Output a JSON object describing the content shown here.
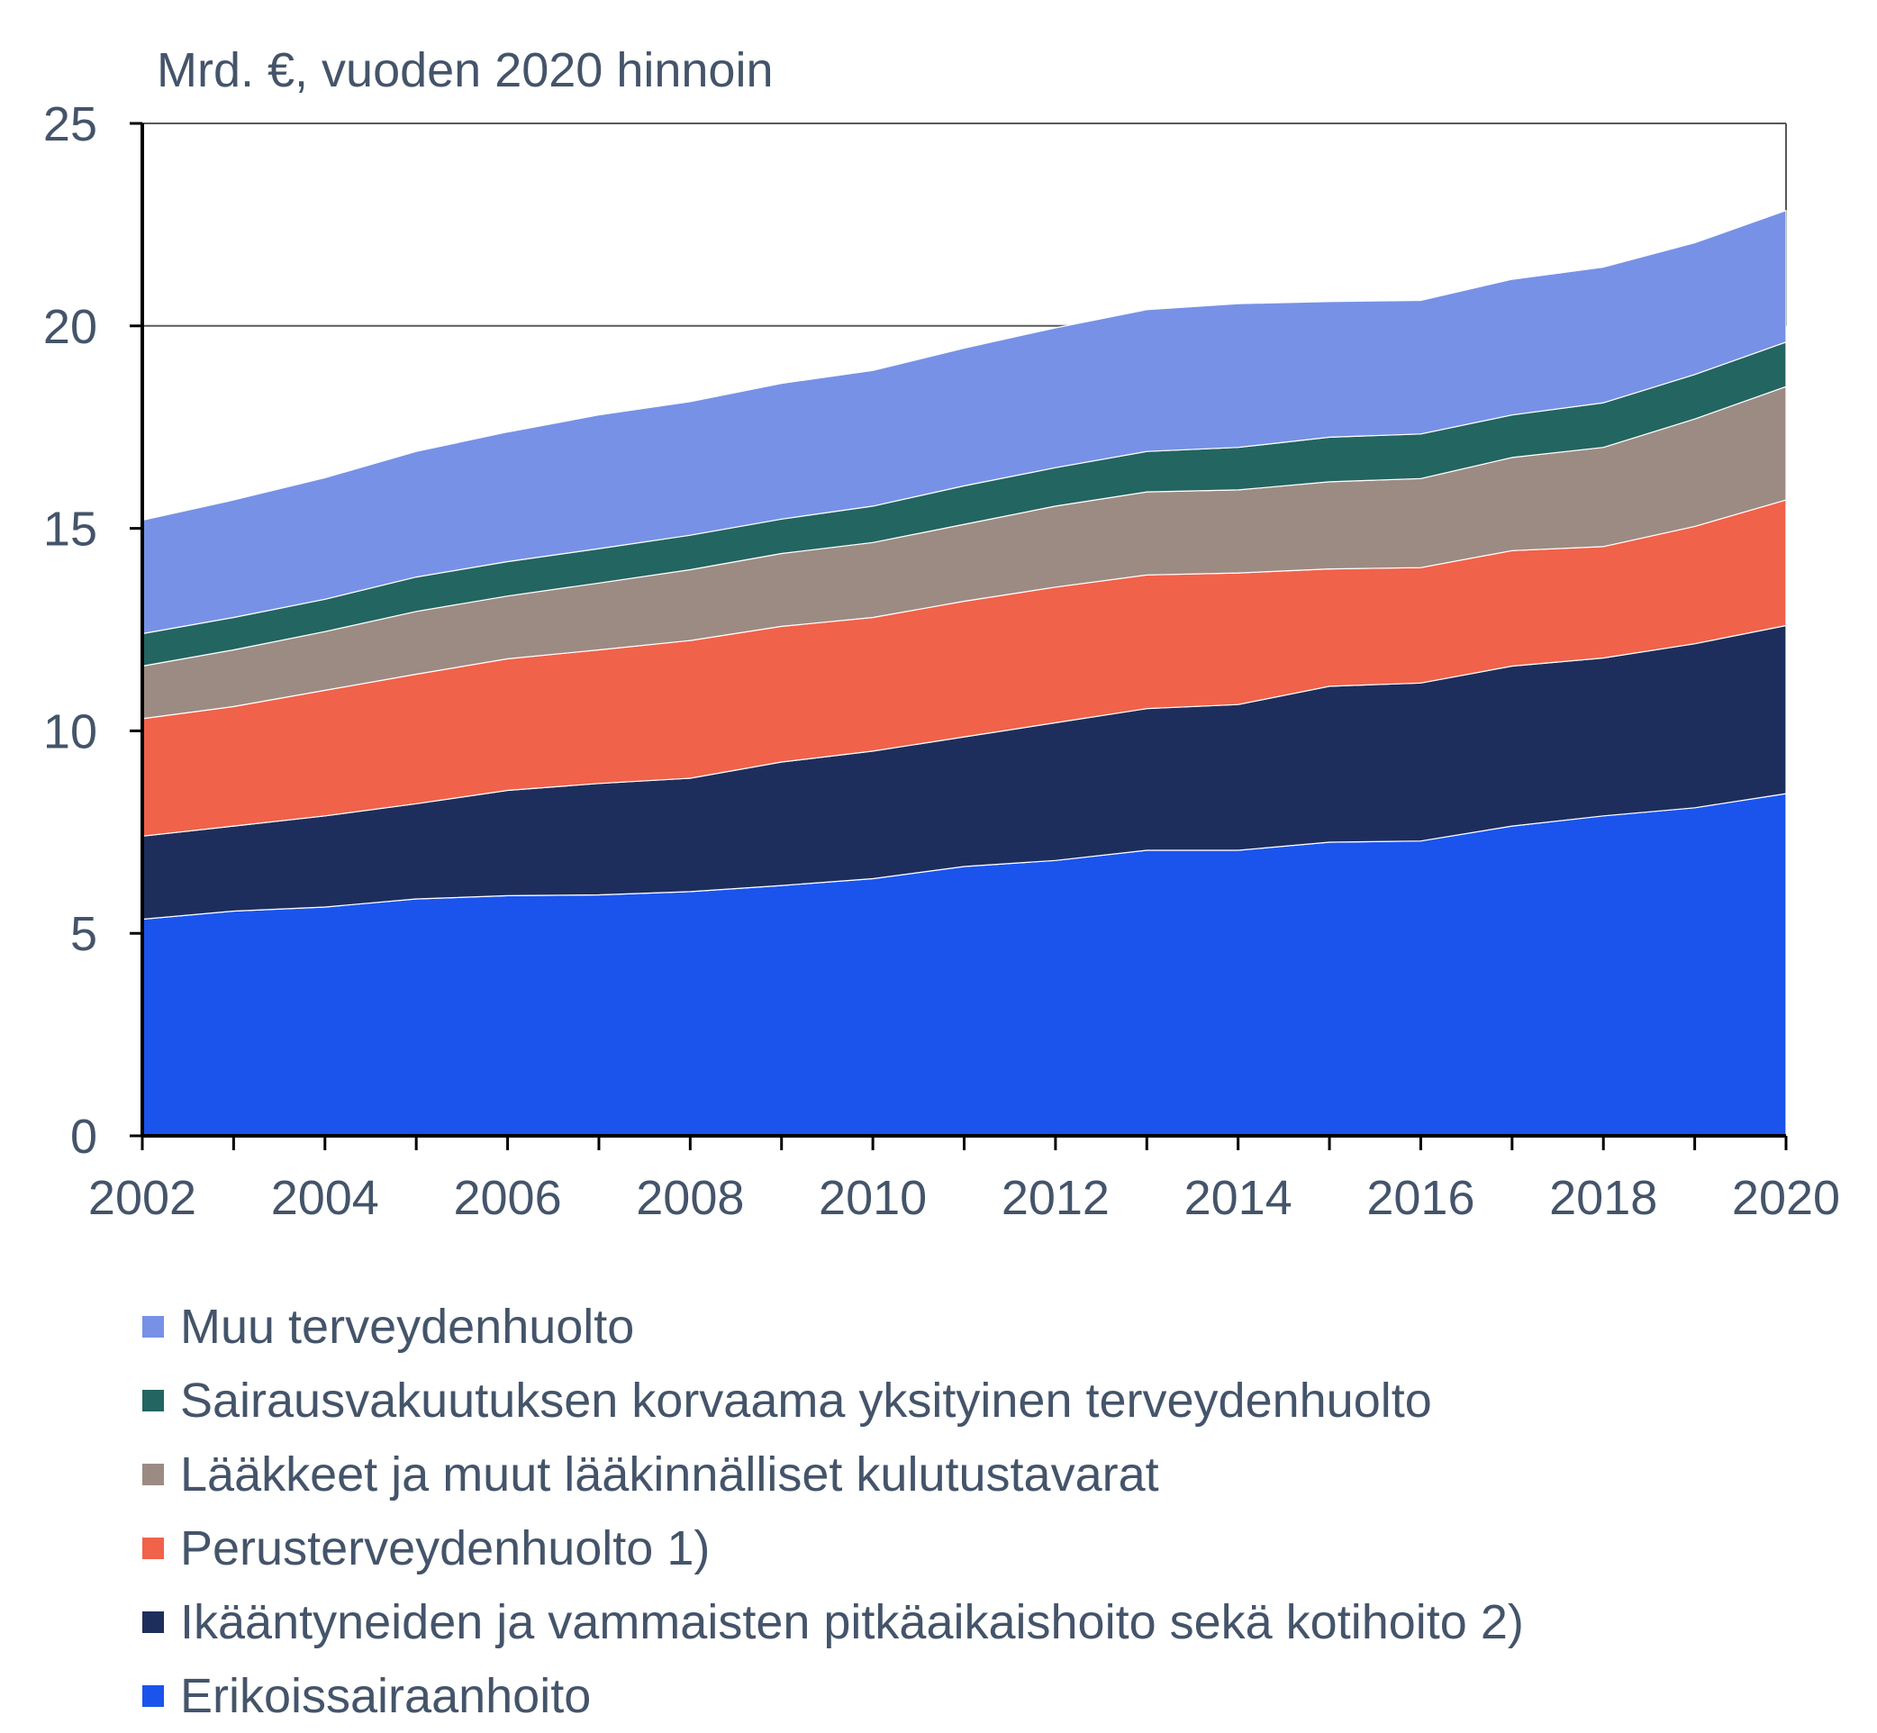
{
  "chart_data": {
    "type": "area",
    "stacked": true,
    "unit_label": "Mrd. €, vuoden 2020 hinnoin",
    "x": [
      2002,
      2003,
      2004,
      2005,
      2006,
      2007,
      2008,
      2009,
      2010,
      2011,
      2012,
      2013,
      2014,
      2015,
      2016,
      2017,
      2018,
      2019,
      2020
    ],
    "x_ticks": [
      2002,
      2004,
      2006,
      2008,
      2010,
      2012,
      2014,
      2016,
      2018,
      2020
    ],
    "x_tick_labels": [
      "2002",
      "2004",
      "2006",
      "2008",
      "2010",
      "2012",
      "2014",
      "2016",
      "2018",
      "2020"
    ],
    "ylim": [
      0,
      25
    ],
    "y_ticks": [
      0,
      5,
      10,
      15,
      20,
      25
    ],
    "y_tick_labels": [
      "0",
      "5",
      "10",
      "15",
      "20",
      "25"
    ],
    "grid": "horizontal at 20 and 25",
    "legend_position": "bottom",
    "series": [
      {
        "name": "Erikoissairaanhoito",
        "color": "#1a54ec",
        "values": [
          5.35,
          5.55,
          5.65,
          5.85,
          5.93,
          5.95,
          6.03,
          6.18,
          6.35,
          6.65,
          6.8,
          7.05,
          7.05,
          7.25,
          7.28,
          7.65,
          7.9,
          8.1,
          8.45
        ]
      },
      {
        "name": "Ikääntyneiden ja vammaisten pitkäaikaishoito sekä kotihoito 2)",
        "color": "#1e2e5c",
        "values": [
          2.05,
          2.1,
          2.25,
          2.35,
          2.6,
          2.75,
          2.8,
          3.05,
          3.15,
          3.2,
          3.4,
          3.5,
          3.6,
          3.85,
          3.9,
          3.95,
          3.9,
          4.05,
          4.15
        ]
      },
      {
        "name": "Perusterveydenhuolto 1)",
        "color": "#f0624a",
        "values": [
          2.9,
          2.95,
          3.1,
          3.2,
          3.25,
          3.3,
          3.4,
          3.35,
          3.3,
          3.35,
          3.35,
          3.3,
          3.25,
          2.9,
          2.85,
          2.85,
          2.75,
          2.9,
          3.1
        ]
      },
      {
        "name": "Lääkkeet ja muut lääkinnälliset kulutustavarat",
        "color": "#9c8b83",
        "values": [
          1.3,
          1.4,
          1.45,
          1.55,
          1.55,
          1.65,
          1.75,
          1.8,
          1.85,
          1.9,
          2.0,
          2.05,
          2.05,
          2.15,
          2.2,
          2.3,
          2.45,
          2.65,
          2.8
        ]
      },
      {
        "name": "Sairausvakuutuksen korvaama yksityinen terveydenhuolto",
        "color": "#236560",
        "values": [
          0.8,
          0.8,
          0.8,
          0.85,
          0.85,
          0.85,
          0.85,
          0.85,
          0.9,
          0.95,
          0.95,
          1.0,
          1.05,
          1.1,
          1.1,
          1.05,
          1.1,
          1.1,
          1.1
        ]
      },
      {
        "name": "Muu terveydenhuolto",
        "color": "#7791e6",
        "values": [
          2.8,
          2.9,
          3.0,
          3.1,
          3.2,
          3.3,
          3.3,
          3.35,
          3.35,
          3.4,
          3.45,
          3.5,
          3.55,
          3.35,
          3.3,
          3.35,
          3.35,
          3.25,
          3.25
        ]
      }
    ],
    "legend_order": [
      5,
      4,
      3,
      2,
      1,
      0
    ]
  }
}
